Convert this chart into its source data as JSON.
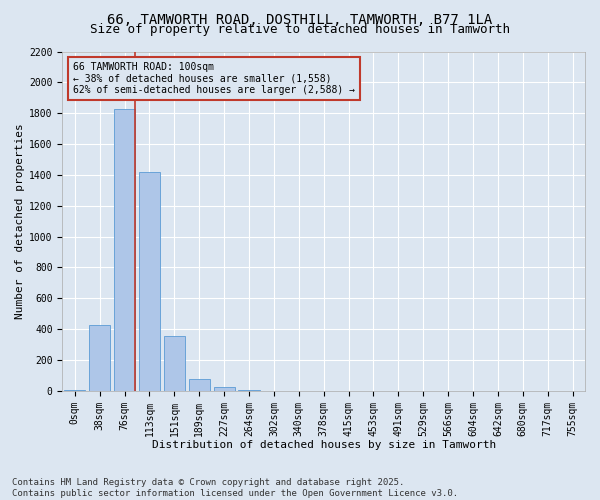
{
  "title": "66, TAMWORTH ROAD, DOSTHILL, TAMWORTH, B77 1LA",
  "subtitle": "Size of property relative to detached houses in Tamworth",
  "xlabel": "Distribution of detached houses by size in Tamworth",
  "ylabel": "Number of detached properties",
  "categories": [
    "0sqm",
    "38sqm",
    "76sqm",
    "113sqm",
    "151sqm",
    "189sqm",
    "227sqm",
    "264sqm",
    "302sqm",
    "340sqm",
    "378sqm",
    "415sqm",
    "453sqm",
    "491sqm",
    "529sqm",
    "566sqm",
    "604sqm",
    "642sqm",
    "680sqm",
    "717sqm",
    "755sqm"
  ],
  "values": [
    5,
    430,
    1830,
    1420,
    355,
    78,
    22,
    3,
    0,
    0,
    0,
    0,
    0,
    0,
    0,
    0,
    0,
    0,
    0,
    0,
    0
  ],
  "bar_color": "#aec6e8",
  "bar_edge_color": "#5b9bd5",
  "background_color": "#dce6f1",
  "grid_color": "#ffffff",
  "vline_color": "#c0392b",
  "annotation_text": "66 TAMWORTH ROAD: 100sqm\n← 38% of detached houses are smaller (1,558)\n62% of semi-detached houses are larger (2,588) →",
  "annotation_box_color": "#c0392b",
  "ylim": [
    0,
    2200
  ],
  "yticks": [
    0,
    200,
    400,
    600,
    800,
    1000,
    1200,
    1400,
    1600,
    1800,
    2000,
    2200
  ],
  "footer": "Contains HM Land Registry data © Crown copyright and database right 2025.\nContains public sector information licensed under the Open Government Licence v3.0.",
  "title_fontsize": 10,
  "subtitle_fontsize": 9,
  "axis_label_fontsize": 8,
  "tick_fontsize": 7,
  "annotation_fontsize": 7,
  "footer_fontsize": 6.5
}
